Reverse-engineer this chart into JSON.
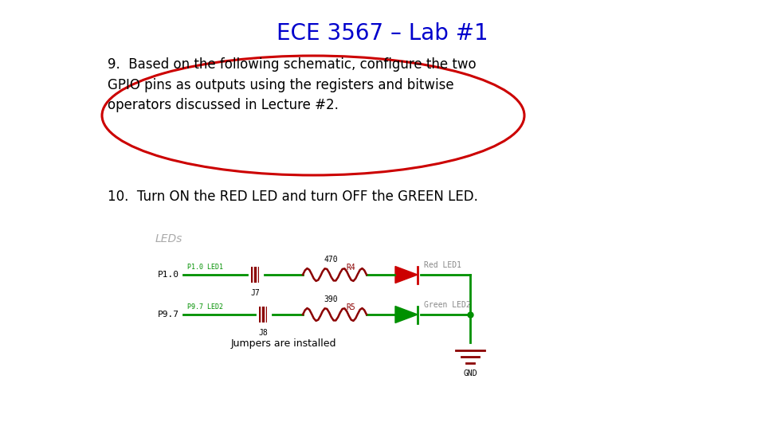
{
  "title": "ECE 3567 – Lab #1",
  "title_color": "#0000CC",
  "title_fontsize": 20,
  "bg_color": "#FFFFFF",
  "text9_line1": "9.  Based on the following schematic, configure the two",
  "text9_line2": "GPIO pins as outputs using the registers and bitwise",
  "text9_line3": "operators discussed in Lecture #2.",
  "text10": "10.  Turn ON the RED LED and turn OFF the GREEN LED.",
  "text_fontsize": 12,
  "ellipse_color": "#CC0000",
  "leds_label": "LEDs",
  "leds_label_color": "#AAAAAA",
  "jumpers_text": "Jumpers are installed",
  "p10_label": "P1.0",
  "p97_label": "P9.7",
  "green_color": "#008000",
  "red_color": "#CC0000",
  "dark_red": "#8B0000",
  "schematic_green": "#009000"
}
